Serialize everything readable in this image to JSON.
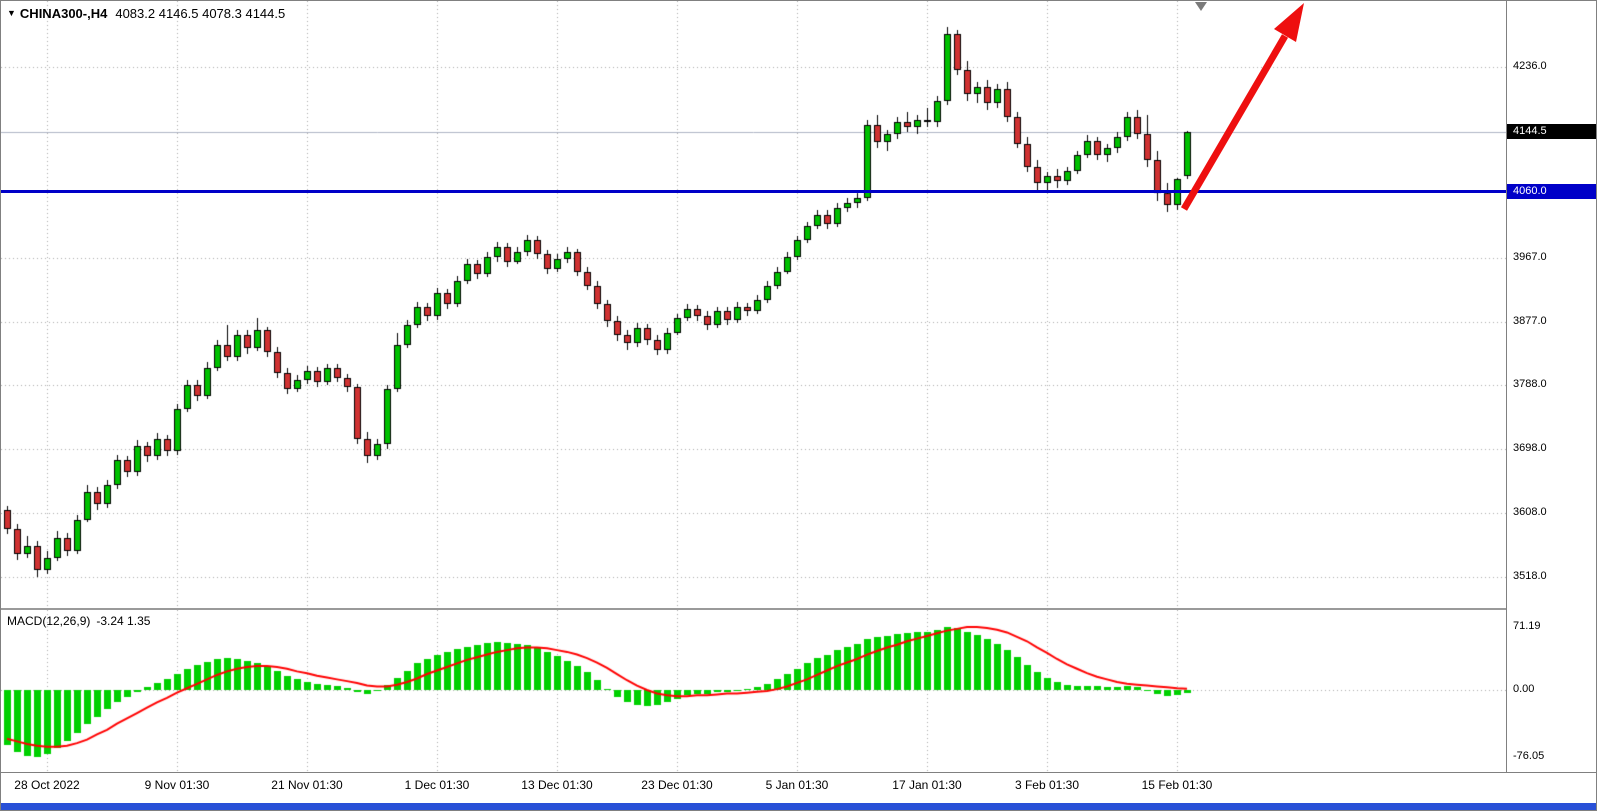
{
  "chart": {
    "symbol": "CHINA300-,H4",
    "ohlc_text": "4083.2 4146.5 4078.3 4144.5"
  },
  "colors": {
    "bull": "#00C000",
    "bear": "#D03232",
    "wick": "#000000",
    "macd_hist": "#00D000",
    "macd_signal": "#FF0000",
    "hline": "#0000C8",
    "price_line": "#AEB4C4",
    "grid": "#A8A8A8",
    "price_label_bg": "#000000",
    "hline_label_bg": "#0000C8",
    "arrow": "#EE0F0F",
    "window_strip": "#2850D7"
  },
  "chart_data": [
    {
      "type": "candlestick",
      "title": "CHINA300-,H4",
      "symbol": "CHINA300-",
      "timeframe": "H4",
      "ohlc_current": {
        "open": 4083.2,
        "high": 4146.5,
        "low": 4078.3,
        "close": 4144.5
      },
      "y_axis": {
        "ticks": [
          4236.0,
          3967.0,
          3877.0,
          3788.0,
          3698.0,
          3608.0,
          3518.0
        ],
        "price_line": 4144.5,
        "hline": 4060.0
      },
      "x_axis": {
        "labels": [
          {
            "index": 4,
            "text": "28 Oct 2022"
          },
          {
            "index": 17,
            "text": "9 Nov 01:30"
          },
          {
            "index": 30,
            "text": "21 Nov 01:30"
          },
          {
            "index": 43,
            "text": "1 Dec 01:30"
          },
          {
            "index": 55,
            "text": "13 Dec 01:30"
          },
          {
            "index": 67,
            "text": "23 Dec 01:30"
          },
          {
            "index": 79,
            "text": "5 Jan 01:30"
          },
          {
            "index": 92,
            "text": "17 Jan 01:30"
          },
          {
            "index": 104,
            "text": "3 Feb 01:30"
          },
          {
            "index": 117,
            "text": "15 Feb 01:30"
          }
        ]
      },
      "candles": [
        [
          3612,
          3618,
          3578,
          3585
        ],
        [
          3585,
          3592,
          3542,
          3550
        ],
        [
          3550,
          3575,
          3545,
          3562
        ],
        [
          3562,
          3568,
          3518,
          3528
        ],
        [
          3528,
          3555,
          3522,
          3545
        ],
        [
          3545,
          3582,
          3540,
          3572
        ],
        [
          3572,
          3580,
          3548,
          3555
        ],
        [
          3555,
          3605,
          3550,
          3598
        ],
        [
          3598,
          3648,
          3595,
          3638
        ],
        [
          3638,
          3645,
          3612,
          3620
        ],
        [
          3620,
          3655,
          3615,
          3648
        ],
        [
          3648,
          3690,
          3642,
          3682
        ],
        [
          3682,
          3688,
          3658,
          3665
        ],
        [
          3665,
          3710,
          3660,
          3702
        ],
        [
          3702,
          3708,
          3680,
          3688
        ],
        [
          3688,
          3720,
          3682,
          3712
        ],
        [
          3712,
          3718,
          3688,
          3695
        ],
        [
          3695,
          3762,
          3690,
          3755
        ],
        [
          3755,
          3795,
          3750,
          3788
        ],
        [
          3788,
          3795,
          3765,
          3772
        ],
        [
          3772,
          3820,
          3768,
          3812
        ],
        [
          3812,
          3852,
          3808,
          3845
        ],
        [
          3845,
          3872,
          3822,
          3828
        ],
        [
          3828,
          3865,
          3822,
          3858
        ],
        [
          3858,
          3865,
          3832,
          3840
        ],
        [
          3840,
          3882,
          3836,
          3865
        ],
        [
          3865,
          3870,
          3828,
          3835
        ],
        [
          3835,
          3842,
          3798,
          3805
        ],
        [
          3805,
          3812,
          3775,
          3782
        ],
        [
          3782,
          3802,
          3778,
          3795
        ],
        [
          3795,
          3815,
          3790,
          3808
        ],
        [
          3808,
          3814,
          3785,
          3792
        ],
        [
          3792,
          3818,
          3788,
          3812
        ],
        [
          3812,
          3818,
          3792,
          3798
        ],
        [
          3798,
          3804,
          3778,
          3785
        ],
        [
          3785,
          3790,
          3705,
          3712
        ],
        [
          3712,
          3722,
          3678,
          3688
        ],
        [
          3688,
          3712,
          3682,
          3705
        ],
        [
          3705,
          3788,
          3698,
          3782
        ],
        [
          3782,
          3862,
          3778,
          3845
        ],
        [
          3845,
          3880,
          3840,
          3872
        ],
        [
          3872,
          3905,
          3868,
          3898
        ],
        [
          3898,
          3904,
          3878,
          3885
        ],
        [
          3885,
          3925,
          3880,
          3918
        ],
        [
          3918,
          3924,
          3895,
          3902
        ],
        [
          3902,
          3942,
          3898,
          3935
        ],
        [
          3935,
          3965,
          3930,
          3958
        ],
        [
          3958,
          3964,
          3938,
          3945
        ],
        [
          3945,
          3975,
          3940,
          3968
        ],
        [
          3968,
          3990,
          3962,
          3982
        ],
        [
          3982,
          3988,
          3955,
          3962
        ],
        [
          3962,
          3982,
          3958,
          3975
        ],
        [
          3975,
          4000,
          3970,
          3992
        ],
        [
          3992,
          3998,
          3965,
          3972
        ],
        [
          3972,
          3978,
          3945,
          3952
        ],
        [
          3952,
          3972,
          3948,
          3965
        ],
        [
          3965,
          3982,
          3960,
          3975
        ],
        [
          3975,
          3980,
          3942,
          3948
        ],
        [
          3948,
          3955,
          3922,
          3928
        ],
        [
          3928,
          3935,
          3895,
          3902
        ],
        [
          3902,
          3908,
          3870,
          3878
        ],
        [
          3878,
          3885,
          3850,
          3858
        ],
        [
          3858,
          3865,
          3838,
          3848
        ],
        [
          3848,
          3875,
          3842,
          3868
        ],
        [
          3868,
          3874,
          3845,
          3852
        ],
        [
          3852,
          3858,
          3830,
          3838
        ],
        [
          3838,
          3868,
          3832,
          3862
        ],
        [
          3862,
          3888,
          3858,
          3882
        ],
        [
          3882,
          3902,
          3878,
          3895
        ],
        [
          3895,
          3901,
          3878,
          3885
        ],
        [
          3885,
          3892,
          3865,
          3872
        ],
        [
          3872,
          3898,
          3868,
          3892
        ],
        [
          3892,
          3898,
          3872,
          3880
        ],
        [
          3880,
          3905,
          3875,
          3898
        ],
        [
          3898,
          3904,
          3885,
          3892
        ],
        [
          3892,
          3915,
          3888,
          3908
        ],
        [
          3908,
          3935,
          3904,
          3928
        ],
        [
          3928,
          3955,
          3924,
          3948
        ],
        [
          3948,
          3975,
          3944,
          3968
        ],
        [
          3968,
          3998,
          3964,
          3992
        ],
        [
          3992,
          4018,
          3988,
          4012
        ],
        [
          4012,
          4035,
          4008,
          4028
        ],
        [
          4028,
          4034,
          4008,
          4015
        ],
        [
          4015,
          4045,
          4010,
          4038
        ],
        [
          4038,
          4052,
          4032,
          4045
        ],
        [
          4045,
          4058,
          4038,
          4052
        ],
        [
          4052,
          4162,
          4048,
          4155
        ],
        [
          4155,
          4168,
          4122,
          4130
        ],
        [
          4130,
          4148,
          4118,
          4142
        ],
        [
          4142,
          4165,
          4135,
          4158
        ],
        [
          4158,
          4172,
          4145,
          4152
        ],
        [
          4152,
          4168,
          4142,
          4162
        ],
        [
          4162,
          4178,
          4152,
          4158
        ],
        [
          4158,
          4195,
          4152,
          4188
        ],
        [
          4188,
          4292,
          4182,
          4282
        ],
        [
          4282,
          4288,
          4225,
          4232
        ],
        [
          4232,
          4245,
          4188,
          4198
        ],
        [
          4198,
          4215,
          4185,
          4208
        ],
        [
          4208,
          4218,
          4175,
          4185
        ],
        [
          4185,
          4212,
          4178,
          4205
        ],
        [
          4205,
          4215,
          4158,
          4165
        ],
        [
          4165,
          4172,
          4122,
          4128
        ],
        [
          4128,
          4138,
          4088,
          4095
        ],
        [
          4095,
          4105,
          4062,
          4072
        ],
        [
          4072,
          4088,
          4058,
          4082
        ],
        [
          4082,
          4092,
          4065,
          4075
        ],
        [
          4075,
          4095,
          4070,
          4090
        ],
        [
          4090,
          4118,
          4085,
          4112
        ],
        [
          4112,
          4140,
          4108,
          4132
        ],
        [
          4132,
          4138,
          4105,
          4112
        ],
        [
          4112,
          4128,
          4102,
          4122
        ],
        [
          4122,
          4145,
          4115,
          4138
        ],
        [
          4138,
          4172,
          4132,
          4165
        ],
        [
          4165,
          4175,
          4135,
          4142
        ],
        [
          4142,
          4168,
          4095,
          4105
        ],
        [
          4105,
          4118,
          4048,
          4058
        ],
        [
          4058,
          4072,
          4032,
          4042
        ],
        [
          4042,
          4080,
          4035,
          4078
        ],
        [
          4083.2,
          4146.5,
          4078.3,
          4144.5
        ]
      ]
    },
    {
      "type": "bar",
      "title": "MACD(12,26,9)",
      "current_values": "-3.24 1.35",
      "macd_value": -3.24,
      "signal_value": 1.35,
      "y_ticks": [
        71.19,
        0.0,
        -76.05
      ],
      "histogram": [
        -62,
        -70,
        -74,
        -76,
        -72,
        -65,
        -58,
        -48,
        -38,
        -30,
        -22,
        -14,
        -8,
        -2,
        3,
        8,
        12,
        18,
        24,
        28,
        32,
        35,
        36,
        35,
        33,
        30,
        26,
        21,
        16,
        12,
        9,
        7,
        6,
        4,
        2,
        -2,
        -4,
        -1,
        6,
        14,
        22,
        30,
        35,
        40,
        43,
        46,
        49,
        51,
        53,
        54,
        53,
        52,
        51,
        48,
        43,
        38,
        33,
        27,
        20,
        11,
        1,
        -8,
        -14,
        -17,
        -18,
        -17,
        -14,
        -10,
        -6,
        -4,
        -4,
        -2,
        -2,
        0,
        1,
        3,
        7,
        12,
        18,
        24,
        30,
        36,
        40,
        45,
        49,
        52,
        58,
        60,
        61,
        63,
        64,
        65,
        66,
        68,
        71,
        70,
        66,
        62,
        57,
        52,
        45,
        37,
        28,
        20,
        14,
        9,
        6,
        5,
        5,
        4,
        3,
        3,
        4,
        3,
        0,
        -4,
        -7,
        -6,
        -3.24
      ],
      "signal": [
        -55,
        -58,
        -61,
        -63,
        -64,
        -64,
        -63,
        -60,
        -56,
        -50,
        -45,
        -38,
        -32,
        -26,
        -20,
        -14,
        -9,
        -3,
        2,
        7,
        12,
        17,
        21,
        24,
        26,
        27,
        27,
        26,
        24,
        21,
        19,
        16,
        14,
        12,
        10,
        8,
        5,
        4,
        4,
        6,
        9,
        13,
        18,
        22,
        26,
        30,
        34,
        37,
        40,
        43,
        45,
        47,
        48,
        48,
        47,
        45,
        43,
        40,
        36,
        31,
        25,
        18,
        11,
        5,
        0,
        -4,
        -6,
        -7,
        -7,
        -6,
        -6,
        -5,
        -4,
        -4,
        -3,
        -2,
        -1,
        1,
        4,
        8,
        12,
        17,
        22,
        27,
        31,
        35,
        40,
        44,
        48,
        51,
        55,
        58,
        61,
        64,
        67,
        69,
        71,
        71,
        70,
        68,
        65,
        60,
        55,
        48,
        42,
        35,
        29,
        24,
        19,
        15,
        12,
        9,
        7,
        6,
        5,
        4,
        3,
        2,
        1.35
      ]
    }
  ]
}
